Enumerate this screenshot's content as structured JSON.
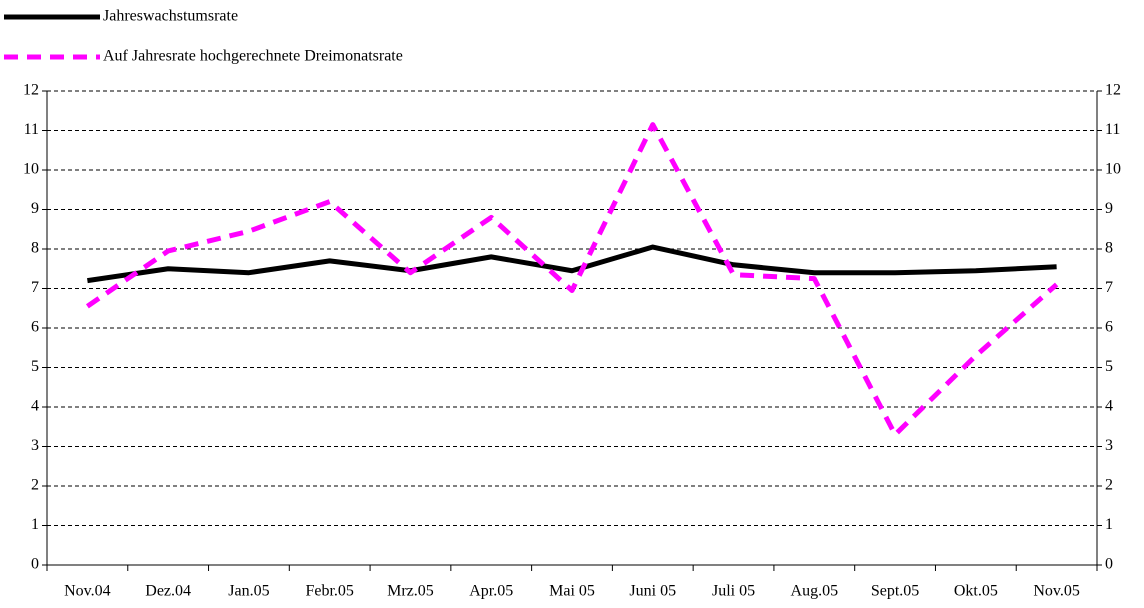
{
  "chart_data": {
    "type": "line",
    "categories": [
      "Nov.04",
      "Dez.04",
      "Jan.05",
      "Febr.05",
      "Mrz.05",
      "Apr.05",
      "Mai 05",
      "Juni 05",
      "Juli 05",
      "Aug.05",
      "Sept.05",
      "Okt.05",
      "Nov.05"
    ],
    "series": [
      {
        "name": "Jahreswachstumsrate",
        "color": "#000000",
        "dash": false,
        "values": [
          7.2,
          7.5,
          7.4,
          7.7,
          7.45,
          7.8,
          7.45,
          8.05,
          7.6,
          7.4,
          7.4,
          7.45,
          7.55
        ]
      },
      {
        "name": "Auf Jahresrate hochgerechnete Dreimonatsrate",
        "color": "#ff00ff",
        "dash": true,
        "values": [
          6.55,
          7.95,
          8.45,
          9.2,
          7.4,
          8.8,
          6.95,
          11.15,
          7.35,
          7.25,
          3.3,
          5.3,
          7.1
        ]
      }
    ],
    "ylim": [
      0,
      12
    ],
    "yticks": [
      0,
      1,
      2,
      3,
      4,
      5,
      6,
      7,
      8,
      9,
      10,
      11,
      12
    ],
    "y2lim": [
      0,
      12
    ],
    "y2ticks": [
      0,
      1,
      2,
      3,
      4,
      5,
      6,
      7,
      8,
      9,
      10,
      11,
      12
    ],
    "grid": true,
    "legend": "top-left"
  }
}
